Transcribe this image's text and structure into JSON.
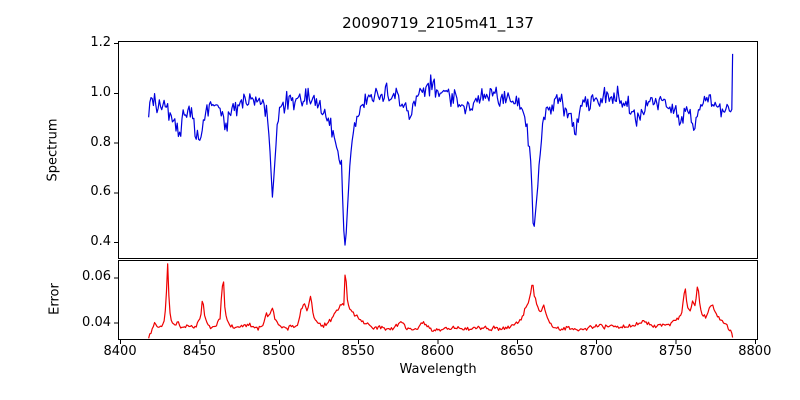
{
  "chart": {
    "title": "20090719_2105m41_137",
    "xlabel": "Wavelength",
    "spectrum_ylabel": "Spectrum",
    "error_ylabel": "Error"
  },
  "chart_data": {
    "type": "line",
    "title": "20090719_2105m41_137",
    "xlabel": "Wavelength",
    "grid": false,
    "legend": null,
    "x_data_range": [
      8418,
      8786
    ],
    "xlim": [
      8398.7,
      8802
    ],
    "xticks": [
      8400,
      8450,
      8500,
      8550,
      8600,
      8650,
      8700,
      8750,
      8800
    ],
    "xtick_labels": [
      "8400",
      "8450",
      "8500",
      "8550",
      "8600",
      "8650",
      "8700",
      "8750",
      "8800"
    ],
    "panels": [
      {
        "name": "spectrum",
        "ylabel": "Spectrum",
        "color": "#0000dd",
        "ylim": [
          0.332,
          1.208
        ],
        "yticks": [
          1.2,
          1.0,
          0.8,
          0.6,
          0.4
        ],
        "ytick_labels": [
          "1.2",
          "1.0",
          "0.8",
          "0.6",
          "0.4"
        ],
        "features_note": "absorption lines near 8498 (depth 0.59), 8542 (depth 0.38), 8662 (depth 0.45); continuum about 0.95-1.0; final point spikes to 1.15",
        "anchors": [
          [
            8418,
            0.93
          ],
          [
            8421,
            0.965
          ],
          [
            8424,
            0.945
          ],
          [
            8427,
            0.955
          ],
          [
            8430,
            0.93
          ],
          [
            8433,
            0.905
          ],
          [
            8436,
            0.86
          ],
          [
            8438,
            0.84
          ],
          [
            8440,
            0.92
          ],
          [
            8443,
            0.95
          ],
          [
            8446,
            0.9
          ],
          [
            8448,
            0.84
          ],
          [
            8450,
            0.805
          ],
          [
            8452,
            0.86
          ],
          [
            8455,
            0.94
          ],
          [
            8458,
            0.96
          ],
          [
            8461,
            0.95
          ],
          [
            8464,
            0.92
          ],
          [
            8467,
            0.865
          ],
          [
            8469,
            0.91
          ],
          [
            8472,
            0.945
          ],
          [
            8475,
            0.93
          ],
          [
            8478,
            0.96
          ],
          [
            8481,
            0.97
          ],
          [
            8484,
            0.955
          ],
          [
            8487,
            0.965
          ],
          [
            8490,
            0.95
          ],
          [
            8493,
            0.905
          ],
          [
            8494.5,
            0.79
          ],
          [
            8496,
            0.58
          ],
          [
            8497.5,
            0.71
          ],
          [
            8499,
            0.87
          ],
          [
            8501,
            0.945
          ],
          [
            8504,
            0.965
          ],
          [
            8508,
            0.975
          ],
          [
            8512,
            0.965
          ],
          [
            8516,
            0.975
          ],
          [
            8520,
            0.98
          ],
          [
            8523,
            0.965
          ],
          [
            8526,
            0.94
          ],
          [
            8529,
            0.915
          ],
          [
            8532,
            0.875
          ],
          [
            8535,
            0.82
          ],
          [
            8537,
            0.77
          ],
          [
            8538.5,
            0.71
          ],
          [
            8539.5,
            0.73
          ],
          [
            8540.5,
            0.52
          ],
          [
            8541.5,
            0.37
          ],
          [
            8542.5,
            0.44
          ],
          [
            8544,
            0.62
          ],
          [
            8545.5,
            0.76
          ],
          [
            8547,
            0.85
          ],
          [
            8549,
            0.9
          ],
          [
            8551,
            0.935
          ],
          [
            8554,
            0.975
          ],
          [
            8558,
            0.995
          ],
          [
            8562,
            1.0
          ],
          [
            8566,
            0.99
          ],
          [
            8570,
            1.005
          ],
          [
            8574,
            0.985
          ],
          [
            8578,
            0.96
          ],
          [
            8581,
            0.925
          ],
          [
            8583,
            0.9
          ],
          [
            8585,
            0.95
          ],
          [
            8588,
            0.985
          ],
          [
            8591,
            1.005
          ],
          [
            8594,
            1.02
          ],
          [
            8597,
            1.03
          ],
          [
            8600,
            1.005
          ],
          [
            8604,
            0.995
          ],
          [
            8608,
            0.985
          ],
          [
            8612,
            0.975
          ],
          [
            8615,
            0.96
          ],
          [
            8618,
            0.925
          ],
          [
            8621,
            0.95
          ],
          [
            8624,
            0.975
          ],
          [
            8628,
            0.98
          ],
          [
            8632,
            0.975
          ],
          [
            8636,
            0.98
          ],
          [
            8640,
            0.975
          ],
          [
            8644,
            0.97
          ],
          [
            8648,
            0.96
          ],
          [
            8651,
            0.945
          ],
          [
            8654,
            0.905
          ],
          [
            8657,
            0.835
          ],
          [
            8659,
            0.72
          ],
          [
            8660.5,
            0.43
          ],
          [
            8661.8,
            0.52
          ],
          [
            8663,
            0.62
          ],
          [
            8664.5,
            0.75
          ],
          [
            8666,
            0.86
          ],
          [
            8668,
            0.92
          ],
          [
            8671,
            0.95
          ],
          [
            8675,
            0.965
          ],
          [
            8679,
            0.955
          ],
          [
            8682,
            0.935
          ],
          [
            8685,
            0.885
          ],
          [
            8687,
            0.835
          ],
          [
            8689,
            0.9
          ],
          [
            8692,
            0.95
          ],
          [
            8696,
            0.97
          ],
          [
            8700,
            0.98
          ],
          [
            8704,
            0.97
          ],
          [
            8708,
            0.985
          ],
          [
            8712,
            0.99
          ],
          [
            8716,
            0.975
          ],
          [
            8720,
            0.955
          ],
          [
            8723,
            0.925
          ],
          [
            8726,
            0.89
          ],
          [
            8729,
            0.915
          ],
          [
            8732,
            0.95
          ],
          [
            8736,
            0.97
          ],
          [
            8740,
            0.975
          ],
          [
            8744,
            0.965
          ],
          [
            8748,
            0.935
          ],
          [
            8751,
            0.895
          ],
          [
            8753,
            0.87
          ],
          [
            8755,
            0.92
          ],
          [
            8757,
            0.94
          ],
          [
            8759,
            0.905
          ],
          [
            8762,
            0.855
          ],
          [
            8764,
            0.9
          ],
          [
            8766,
            0.945
          ],
          [
            8768,
            0.975
          ],
          [
            8770,
            0.995
          ],
          [
            8772,
            0.98
          ],
          [
            8774,
            0.965
          ],
          [
            8776,
            0.945
          ],
          [
            8778,
            0.935
          ],
          [
            8780,
            0.925
          ],
          [
            8782,
            0.92
          ],
          [
            8784,
            0.925
          ],
          [
            8785.5,
            0.93
          ],
          [
            8786,
            1.15
          ]
        ],
        "noise": {
          "seed": 2105,
          "amplitude": 0.05,
          "min_scale": 0.12,
          "floor": 0.45,
          "span": 0.5,
          "step": 0.75
        }
      },
      {
        "name": "error",
        "ylabel": "Error",
        "color": "#ee0000",
        "ylim": [
          0.0323,
          0.0677
        ],
        "yticks": [
          0.06,
          0.04
        ],
        "ytick_labels": [
          "0.06",
          "0.04"
        ],
        "features_note": "baseline about 0.037-0.040 with spikes near 8430 (0.065), 8452 (0.050), 8465 (0.060), 8542 (0.065), 8660 (0.057), 8756 (0.055), 8764 (0.057)",
        "anchors": [
          [
            8418,
            0.0335
          ],
          [
            8420,
            0.037
          ],
          [
            8422,
            0.0395
          ],
          [
            8424,
            0.038
          ],
          [
            8426,
            0.0385
          ],
          [
            8428,
            0.0405
          ],
          [
            8429,
            0.049
          ],
          [
            8430,
            0.067
          ],
          [
            8431,
            0.047
          ],
          [
            8432,
            0.0415
          ],
          [
            8434,
            0.0385
          ],
          [
            8436,
            0.0405
          ],
          [
            8438,
            0.038
          ],
          [
            8440,
            0.0375
          ],
          [
            8443,
            0.039
          ],
          [
            8446,
            0.0375
          ],
          [
            8449,
            0.0395
          ],
          [
            8451,
            0.0435
          ],
          [
            8452,
            0.051
          ],
          [
            8453,
            0.0435
          ],
          [
            8455,
            0.0395
          ],
          [
            8457,
            0.0375
          ],
          [
            8459,
            0.038
          ],
          [
            8461,
            0.0395
          ],
          [
            8463,
            0.042
          ],
          [
            8465,
            0.062
          ],
          [
            8466,
            0.046
          ],
          [
            8467,
            0.0425
          ],
          [
            8469,
            0.0385
          ],
          [
            8472,
            0.0375
          ],
          [
            8475,
            0.038
          ],
          [
            8478,
            0.0385
          ],
          [
            8481,
            0.0395
          ],
          [
            8484,
            0.038
          ],
          [
            8487,
            0.0375
          ],
          [
            8490,
            0.039
          ],
          [
            8492,
            0.0445
          ],
          [
            8494,
            0.042
          ],
          [
            8496,
            0.046
          ],
          [
            8498,
            0.041
          ],
          [
            8500,
            0.0395
          ],
          [
            8503,
            0.038
          ],
          [
            8506,
            0.0375
          ],
          [
            8509,
            0.0385
          ],
          [
            8512,
            0.039
          ],
          [
            8514,
            0.046
          ],
          [
            8516,
            0.0485
          ],
          [
            8518,
            0.044
          ],
          [
            8520,
            0.0515
          ],
          [
            8522,
            0.0435
          ],
          [
            8524,
            0.04
          ],
          [
            8527,
            0.0385
          ],
          [
            8530,
            0.039
          ],
          [
            8533,
            0.0415
          ],
          [
            8536,
            0.0445
          ],
          [
            8539,
            0.048
          ],
          [
            8541,
            0.0475
          ],
          [
            8542,
            0.066
          ],
          [
            8543,
            0.05
          ],
          [
            8545,
            0.046
          ],
          [
            8547,
            0.0445
          ],
          [
            8549,
            0.0425
          ],
          [
            8552,
            0.0405
          ],
          [
            8555,
            0.0395
          ],
          [
            8558,
            0.0385
          ],
          [
            8562,
            0.0375
          ],
          [
            8566,
            0.0375
          ],
          [
            8570,
            0.037
          ],
          [
            8574,
            0.0385
          ],
          [
            8578,
            0.0405
          ],
          [
            8581,
            0.0375
          ],
          [
            8584,
            0.037
          ],
          [
            8588,
            0.0375
          ],
          [
            8591,
            0.041
          ],
          [
            8593,
            0.0385
          ],
          [
            8596,
            0.037
          ],
          [
            8600,
            0.0368
          ],
          [
            8604,
            0.0375
          ],
          [
            8608,
            0.0372
          ],
          [
            8612,
            0.038
          ],
          [
            8616,
            0.0372
          ],
          [
            8620,
            0.0368
          ],
          [
            8624,
            0.0375
          ],
          [
            8628,
            0.038
          ],
          [
            8632,
            0.0372
          ],
          [
            8636,
            0.0375
          ],
          [
            8640,
            0.037
          ],
          [
            8644,
            0.0378
          ],
          [
            8648,
            0.039
          ],
          [
            8651,
            0.0405
          ],
          [
            8654,
            0.0435
          ],
          [
            8656,
            0.047
          ],
          [
            8658,
            0.05
          ],
          [
            8660,
            0.058
          ],
          [
            8661,
            0.052
          ],
          [
            8663,
            0.0475
          ],
          [
            8665,
            0.0445
          ],
          [
            8667,
            0.048
          ],
          [
            8669,
            0.0425
          ],
          [
            8671,
            0.0395
          ],
          [
            8674,
            0.038
          ],
          [
            8678,
            0.0375
          ],
          [
            8682,
            0.038
          ],
          [
            8686,
            0.0372
          ],
          [
            8690,
            0.0368
          ],
          [
            8694,
            0.0375
          ],
          [
            8698,
            0.038
          ],
          [
            8702,
            0.0385
          ],
          [
            8706,
            0.038
          ],
          [
            8710,
            0.039
          ],
          [
            8714,
            0.0378
          ],
          [
            8718,
            0.038
          ],
          [
            8722,
            0.0388
          ],
          [
            8726,
            0.0395
          ],
          [
            8730,
            0.04
          ],
          [
            8734,
            0.0392
          ],
          [
            8738,
            0.0382
          ],
          [
            8742,
            0.039
          ],
          [
            8746,
            0.0395
          ],
          [
            8750,
            0.0405
          ],
          [
            8752,
            0.042
          ],
          [
            8754,
            0.0445
          ],
          [
            8756,
            0.056
          ],
          [
            8757.5,
            0.046
          ],
          [
            8759,
            0.0445
          ],
          [
            8761,
            0.05
          ],
          [
            8762.5,
            0.047
          ],
          [
            8764,
            0.058
          ],
          [
            8765.5,
            0.0465
          ],
          [
            8767,
            0.043
          ],
          [
            8769,
            0.0425
          ],
          [
            8771,
            0.046
          ],
          [
            8773,
            0.049
          ],
          [
            8775,
            0.0445
          ],
          [
            8777,
            0.0425
          ],
          [
            8779,
            0.041
          ],
          [
            8781,
            0.0395
          ],
          [
            8783,
            0.038
          ],
          [
            8785,
            0.036
          ],
          [
            8786,
            0.0335
          ]
        ],
        "noise": {
          "seed": 137,
          "amplitude": 0.0012,
          "min_scale": 1,
          "floor": 0,
          "span": 1,
          "step": 0.75
        }
      }
    ]
  }
}
